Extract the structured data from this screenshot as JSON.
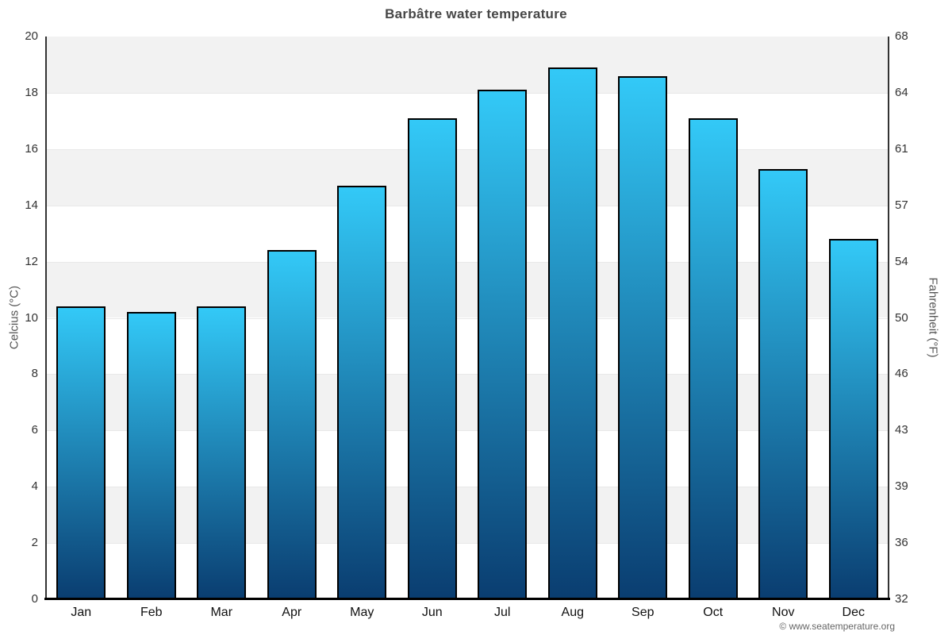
{
  "title": "Barbâtre water temperature",
  "copyright": "© www.seatemperature.org",
  "chart_data": {
    "type": "bar",
    "title": "Barbâtre water temperature",
    "categories": [
      "Jan",
      "Feb",
      "Mar",
      "Apr",
      "May",
      "Jun",
      "Jul",
      "Aug",
      "Sep",
      "Oct",
      "Nov",
      "Dec"
    ],
    "values": [
      10.4,
      10.2,
      10.4,
      12.4,
      14.7,
      17.1,
      18.1,
      18.9,
      18.6,
      17.1,
      15.3,
      12.8
    ],
    "unit": "°C",
    "xlabel": "",
    "ylabel_left": "Celcius (°C)",
    "ylabel_right": "Fahrenheit (°F)",
    "ylim": [
      0,
      20
    ],
    "yticks_celsius": [
      0,
      2,
      4,
      6,
      8,
      10,
      12,
      14,
      16,
      18,
      20
    ],
    "yticks_fahrenheit": [
      32,
      36,
      39,
      43,
      46,
      50,
      54,
      57,
      61,
      64,
      68
    ],
    "legend": "none",
    "grid": "alternating horizontal bands every 2°C",
    "colors": {
      "bar_gradient_top": "#33c9f7",
      "bar_gradient_bottom": "#0a3d70",
      "bar_border": "#000000",
      "band_gray": "#f2f2f2",
      "band_white": "#ffffff",
      "gridline": "#e8e8e8",
      "axis_line": "#333333",
      "xaxis_line": "#000000",
      "title_color": "#464646",
      "tick_label_color": "#333333",
      "axis_title_color": "#555555",
      "copyright_color": "#666666"
    }
  }
}
